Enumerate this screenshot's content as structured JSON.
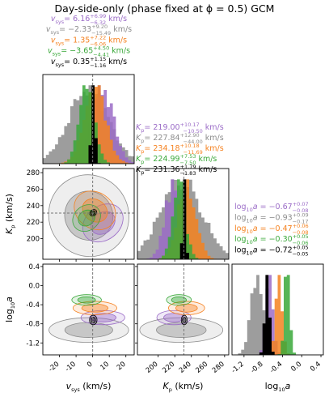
{
  "figure_title": "Day-side-only (phase fixed at ϕ = 0.5) GCM",
  "colors": {
    "purple": "#9b6cc7",
    "gray": "#8c8c8c",
    "orange": "#f58220",
    "green": "#3aa83a",
    "black": "#000000"
  },
  "annotations": {
    "vsys": [
      {
        "label": "v",
        "sub": "sys",
        "value": "= 6.16",
        "up": "+6.99",
        "dn": "−6.32",
        "unit": " km/s",
        "color": "#9b6cc7"
      },
      {
        "label": "v",
        "sub": "sys",
        "value": "= −2.33",
        "up": "+9.20",
        "dn": "−15.49",
        "unit": " km/s",
        "color": "#8c8c8c"
      },
      {
        "label": "v",
        "sub": "sys",
        "value": "= 1.35",
        "up": "+7.22",
        "dn": "−6.06",
        "unit": " km/s",
        "color": "#f58220"
      },
      {
        "label": "v",
        "sub": "sys",
        "value": "= −3.65",
        "up": "+4.50",
        "dn": "−4.41",
        "unit": " km/s",
        "color": "#3aa83a"
      },
      {
        "label": "v",
        "sub": "sys",
        "value": "= 0.35",
        "up": "+1.15",
        "dn": "−1.16",
        "unit": " km/s",
        "color": "#000000"
      }
    ],
    "kp": [
      {
        "label": "K",
        "sub": "p",
        "value": "= 219.00",
        "up": "+10.17",
        "dn": "−10.50",
        "unit": " km/s",
        "color": "#9b6cc7"
      },
      {
        "label": "K",
        "sub": "p",
        "value": "= 227.84",
        "up": "+12.90",
        "dn": "−44.00",
        "unit": " km/s",
        "color": "#8c8c8c"
      },
      {
        "label": "K",
        "sub": "p",
        "value": "= 234.18",
        "up": "+10.18",
        "dn": "−11.69",
        "unit": " km/s",
        "color": "#f58220"
      },
      {
        "label": "K",
        "sub": "p",
        "value": "= 224.99",
        "up": "+7.53",
        "dn": "−7.50",
        "unit": " km/s",
        "color": "#3aa83a"
      },
      {
        "label": "K",
        "sub": "p",
        "value": "= 231.36",
        "up": "+1.79",
        "dn": "−1.83",
        "unit": " km/s",
        "color": "#000000"
      }
    ],
    "loga": [
      {
        "label": "log",
        "sub": "10",
        "label2": "a",
        "value": " = −0.67",
        "up": "+0.07",
        "dn": "−0.08",
        "unit": "",
        "color": "#9b6cc7"
      },
      {
        "label": "log",
        "sub": "10",
        "label2": "a",
        "value": " = −0.93",
        "up": "+0.09",
        "dn": "−0.17",
        "unit": "",
        "color": "#8c8c8c"
      },
      {
        "label": "log",
        "sub": "10",
        "label2": "a",
        "value": " = −0.47",
        "up": "+0.06",
        "dn": "−0.08",
        "unit": "",
        "color": "#f58220"
      },
      {
        "label": "log",
        "sub": "10",
        "label2": "a",
        "value": " = −0.30",
        "up": "+0.05",
        "dn": "−0.06",
        "unit": "",
        "color": "#3aa83a"
      },
      {
        "label": "log",
        "sub": "10",
        "label2": "a",
        "value": " = −0.72",
        "up": "+0.05",
        "dn": "−0.05",
        "unit": "",
        "color": "#000000"
      }
    ]
  },
  "chart_data": {
    "type": "corner",
    "parameters": [
      "v_sys (km/s)",
      "K_p (km/s)",
      "log10 a"
    ],
    "axis_labels": {
      "vsys": "v_sys (km/s)",
      "kp": "K_p (km/s)",
      "loga": "log₁₀a"
    },
    "ranges": {
      "vsys": [
        -30,
        25
      ],
      "kp": [
        175,
        285
      ],
      "loga": [
        -1.45,
        0.45
      ]
    },
    "ticks": {
      "vsys": [
        "-20",
        "-10",
        "0",
        "10",
        "20"
      ],
      "kp": [
        "200",
        "220",
        "240",
        "260",
        "280"
      ],
      "loga": [
        "-1.2",
        "-0.8",
        "-0.4",
        "0.0",
        "0.4"
      ]
    },
    "truth": {
      "vsys": 0,
      "kp": 231
    },
    "series": [
      {
        "name": "",
        "color": "#9b6cc7",
        "vsys": 6.16,
        "kp": 219.0,
        "loga": -0.67
      },
      {
        "name": "",
        "color": "#8c8c8c",
        "vsys": -2.33,
        "kp": 227.84,
        "loga": -0.93
      },
      {
        "name": "",
        "color": "#f58220",
        "vsys": 1.35,
        "kp": 234.18,
        "loga": -0.47
      },
      {
        "name": "",
        "color": "#3aa83a",
        "vsys": -3.65,
        "kp": 224.99,
        "loga": -0.3
      },
      {
        "name": "",
        "color": "#000000",
        "vsys": 0.35,
        "kp": 231.36,
        "loga": -0.72
      }
    ]
  }
}
